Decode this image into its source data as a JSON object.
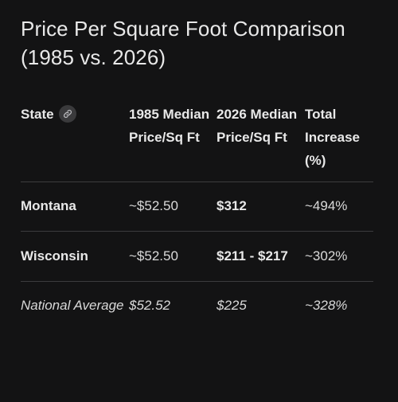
{
  "title": "Price Per Square Foot Comparison (1985 vs. 2026)",
  "table": {
    "headers": {
      "state": "State",
      "col1985": "1985 Median Price/Sq Ft",
      "col2026": "2026 Median Price/Sq Ft",
      "increase": "Total Increase (%)"
    },
    "header_icon": "link-icon",
    "rows": [
      {
        "state": "Montana",
        "p1985": "~$52.50",
        "p2026": "$312",
        "increase": "~494%"
      },
      {
        "state": "Wisconsin",
        "p1985": "~$52.50",
        "p2026": "$211 - $217",
        "increase": "~302%"
      },
      {
        "state": "National Average",
        "p1985": "$52.52",
        "p2026": "$225",
        "increase": "~328%"
      }
    ]
  }
}
